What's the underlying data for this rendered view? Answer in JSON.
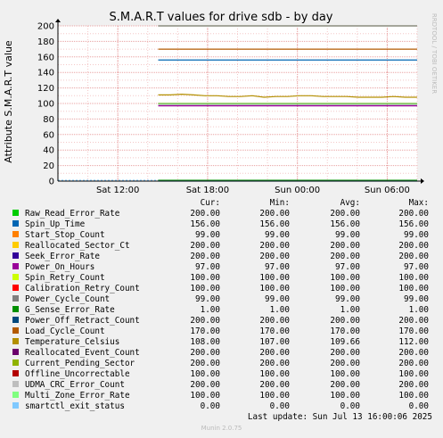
{
  "chart_data": {
    "type": "line",
    "title": "S.M.A.R.T values for drive sdb - by day",
    "ylabel": "Attribute S.M.A.R.T value",
    "ylim": [
      0,
      200
    ],
    "yticks": [
      0,
      20,
      40,
      60,
      80,
      100,
      120,
      140,
      160,
      180,
      200
    ],
    "x_tick_labels": [
      "Sat 12:00",
      "Sat 18:00",
      "Sun 00:00",
      "Sun 06:00",
      "Sun 12:00"
    ],
    "side_text": "RRDTOOL / TOBI OETIKER",
    "grid": true,
    "series": [
      {
        "name": "Raw_Read_Error_Rate",
        "color": "#00cc00",
        "value": 200
      },
      {
        "name": "Spin_Up_Time",
        "color": "#0066b3",
        "value": 156
      },
      {
        "name": "Start_Stop_Count",
        "color": "#ff8000",
        "value": 99
      },
      {
        "name": "Reallocated_Sector_Ct",
        "color": "#ffcc00",
        "value": 200
      },
      {
        "name": "Seek_Error_Rate",
        "color": "#330099",
        "value": 200
      },
      {
        "name": "Power_On_Hours",
        "color": "#990099",
        "value": 97
      },
      {
        "name": "Spin_Retry_Count",
        "color": "#ccff00",
        "value": 100
      },
      {
        "name": "Calibration_Retry_Count",
        "color": "#ff0000",
        "value": 100
      },
      {
        "name": "Power_Cycle_Count",
        "color": "#808080",
        "value": 99
      },
      {
        "name": "G_Sense_Error_Rate",
        "color": "#008f00",
        "value": 1
      },
      {
        "name": "Power_Off_Retract_Count",
        "color": "#00487d",
        "value": 200
      },
      {
        "name": "Load_Cycle_Count",
        "color": "#b35a00",
        "value": 170
      },
      {
        "name": "Temperature_Celsius",
        "color": "#b38f00",
        "value": 108,
        "values": [
          111,
          111,
          112,
          111,
          110,
          110,
          109,
          109,
          110,
          108,
          109,
          109,
          110,
          110,
          109,
          109,
          109,
          108,
          108,
          108,
          109,
          108,
          108
        ]
      },
      {
        "name": "Reallocated_Event_Count",
        "color": "#6b006b",
        "value": 200
      },
      {
        "name": "Current_Pending_Sector",
        "color": "#8fb300",
        "value": 200
      },
      {
        "name": "Offline_Uncorrectable",
        "color": "#b30000",
        "value": 100
      },
      {
        "name": "UDMA_CRC_Error_Count",
        "color": "#bebebe",
        "value": 200
      },
      {
        "name": "Multi_Zone_Error_Rate",
        "color": "#80ff80",
        "value": 100
      },
      {
        "name": "smartctl_exit_status",
        "color": "#80c9ff",
        "value": 0
      }
    ]
  },
  "legend": {
    "headers": {
      "cur": "Cur:",
      "min": "Min:",
      "avg": "Avg:",
      "max": "Max:"
    },
    "rows": [
      {
        "name": "Raw_Read_Error_Rate",
        "cur": "200.00",
        "min": "200.00",
        "avg": "200.00",
        "max": "200.00"
      },
      {
        "name": "Spin_Up_Time",
        "cur": "156.00",
        "min": "156.00",
        "avg": "156.00",
        "max": "156.00"
      },
      {
        "name": "Start_Stop_Count",
        "cur": "99.00",
        "min": "99.00",
        "avg": "99.00",
        "max": "99.00"
      },
      {
        "name": "Reallocated_Sector_Ct",
        "cur": "200.00",
        "min": "200.00",
        "avg": "200.00",
        "max": "200.00"
      },
      {
        "name": "Seek_Error_Rate",
        "cur": "200.00",
        "min": "200.00",
        "avg": "200.00",
        "max": "200.00"
      },
      {
        "name": "Power_On_Hours",
        "cur": "97.00",
        "min": "97.00",
        "avg": "97.00",
        "max": "97.00"
      },
      {
        "name": "Spin_Retry_Count",
        "cur": "100.00",
        "min": "100.00",
        "avg": "100.00",
        "max": "100.00"
      },
      {
        "name": "Calibration_Retry_Count",
        "cur": "100.00",
        "min": "100.00",
        "avg": "100.00",
        "max": "100.00"
      },
      {
        "name": "Power_Cycle_Count",
        "cur": "99.00",
        "min": "99.00",
        "avg": "99.00",
        "max": "99.00"
      },
      {
        "name": "G_Sense_Error_Rate",
        "cur": "1.00",
        "min": "1.00",
        "avg": "1.00",
        "max": "1.00"
      },
      {
        "name": "Power_Off_Retract_Count",
        "cur": "200.00",
        "min": "200.00",
        "avg": "200.00",
        "max": "200.00"
      },
      {
        "name": "Load_Cycle_Count",
        "cur": "170.00",
        "min": "170.00",
        "avg": "170.00",
        "max": "170.00"
      },
      {
        "name": "Temperature_Celsius",
        "cur": "108.00",
        "min": "107.00",
        "avg": "109.66",
        "max": "112.00"
      },
      {
        "name": "Reallocated_Event_Count",
        "cur": "200.00",
        "min": "200.00",
        "avg": "200.00",
        "max": "200.00"
      },
      {
        "name": "Current_Pending_Sector",
        "cur": "200.00",
        "min": "200.00",
        "avg": "200.00",
        "max": "200.00"
      },
      {
        "name": "Offline_Uncorrectable",
        "cur": "100.00",
        "min": "100.00",
        "avg": "100.00",
        "max": "100.00"
      },
      {
        "name": "UDMA_CRC_Error_Count",
        "cur": "200.00",
        "min": "200.00",
        "avg": "200.00",
        "max": "200.00"
      },
      {
        "name": "Multi_Zone_Error_Rate",
        "cur": "100.00",
        "min": "100.00",
        "avg": "100.00",
        "max": "100.00"
      },
      {
        "name": "smartctl_exit_status",
        "cur": "0.00",
        "min": "0.00",
        "avg": "0.00",
        "max": "0.00"
      }
    ]
  },
  "footer": {
    "last_update": "Last update: Sun Jul 13 16:00:06 2025",
    "munin": "Munin 2.0.75"
  }
}
